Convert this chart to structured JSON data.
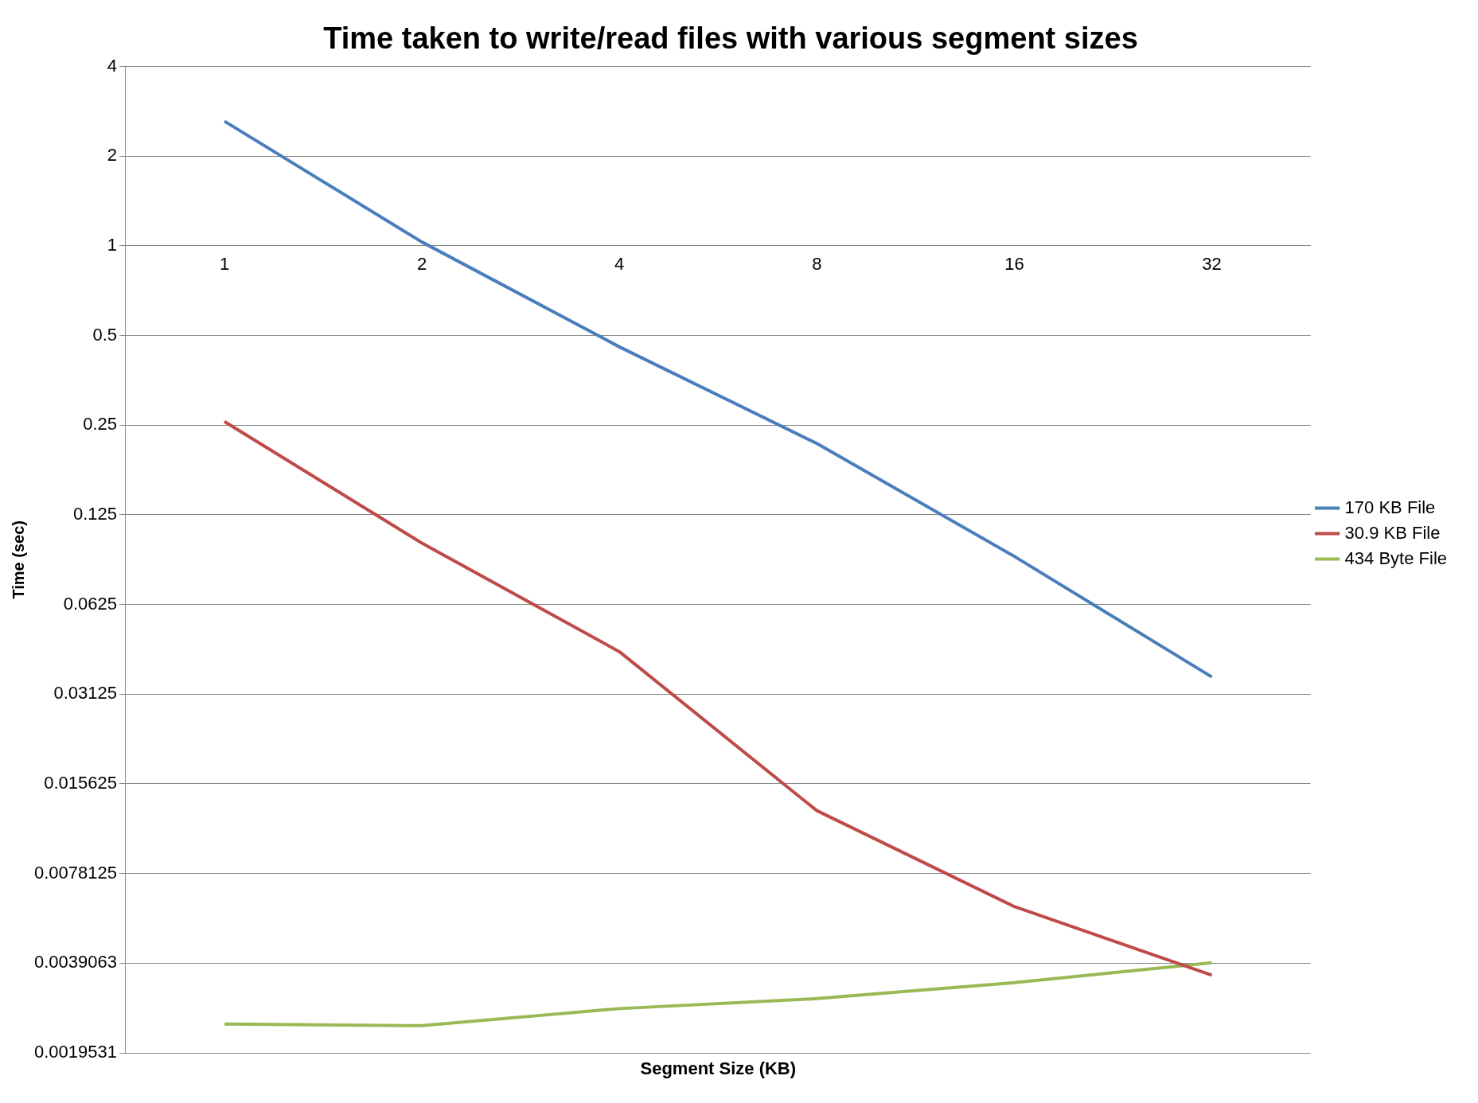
{
  "chart_data": {
    "type": "line",
    "title": "Time taken to write/read files with various segment sizes",
    "xlabel": "Segment Size (KB)",
    "ylabel": "Time (sec)",
    "categories": [
      "1",
      "2",
      "4",
      "8",
      "16",
      "32"
    ],
    "series": [
      {
        "name": "170 KB File",
        "color": "#4a7ebb",
        "values": [
          2.62,
          1.03,
          0.458,
          0.217,
          0.0907,
          0.0357
        ]
      },
      {
        "name": "30.9 KB File",
        "color": "#be4b48",
        "values": [
          0.257,
          0.1005,
          0.0434,
          0.0127,
          0.00605,
          0.00356
        ]
      },
      {
        "name": "434 Byte File",
        "color": "#98b954",
        "values": [
          0.00244,
          0.00241,
          0.00275,
          0.00297,
          0.00336,
          0.00392
        ]
      }
    ],
    "log": "y",
    "ylim": [
      0.0019531,
      4
    ],
    "yticks": [
      0.0019531,
      0.0039063,
      0.0078125,
      0.015625,
      0.03125,
      0.0625,
      0.125,
      0.25,
      0.5,
      1,
      2,
      4
    ],
    "grid": "y",
    "legend": "right",
    "marker": "none",
    "line_style": "solid"
  }
}
